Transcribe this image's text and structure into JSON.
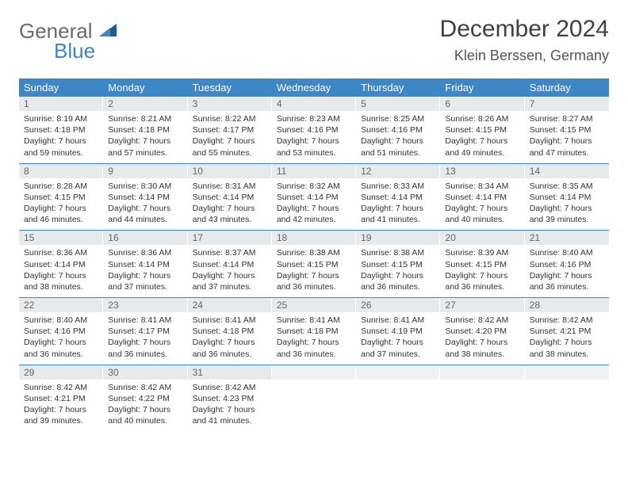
{
  "logo": {
    "general": "General",
    "blue": "Blue"
  },
  "title": "December 2024",
  "location": "Klein Berssen, Germany",
  "header_bg": "#3d87c7",
  "daynum_bg": "#e7e9eb",
  "row_border": "#3d87c7",
  "weekdays": [
    "Sunday",
    "Monday",
    "Tuesday",
    "Wednesday",
    "Thursday",
    "Friday",
    "Saturday"
  ],
  "weeks": [
    [
      {
        "n": "1",
        "sr": "8:19 AM",
        "ss": "4:18 PM",
        "dl": "7 hours and 59 minutes."
      },
      {
        "n": "2",
        "sr": "8:21 AM",
        "ss": "4:18 PM",
        "dl": "7 hours and 57 minutes."
      },
      {
        "n": "3",
        "sr": "8:22 AM",
        "ss": "4:17 PM",
        "dl": "7 hours and 55 minutes."
      },
      {
        "n": "4",
        "sr": "8:23 AM",
        "ss": "4:16 PM",
        "dl": "7 hours and 53 minutes."
      },
      {
        "n": "5",
        "sr": "8:25 AM",
        "ss": "4:16 PM",
        "dl": "7 hours and 51 minutes."
      },
      {
        "n": "6",
        "sr": "8:26 AM",
        "ss": "4:15 PM",
        "dl": "7 hours and 49 minutes."
      },
      {
        "n": "7",
        "sr": "8:27 AM",
        "ss": "4:15 PM",
        "dl": "7 hours and 47 minutes."
      }
    ],
    [
      {
        "n": "8",
        "sr": "8:28 AM",
        "ss": "4:15 PM",
        "dl": "7 hours and 46 minutes."
      },
      {
        "n": "9",
        "sr": "8:30 AM",
        "ss": "4:14 PM",
        "dl": "7 hours and 44 minutes."
      },
      {
        "n": "10",
        "sr": "8:31 AM",
        "ss": "4:14 PM",
        "dl": "7 hours and 43 minutes."
      },
      {
        "n": "11",
        "sr": "8:32 AM",
        "ss": "4:14 PM",
        "dl": "7 hours and 42 minutes."
      },
      {
        "n": "12",
        "sr": "8:33 AM",
        "ss": "4:14 PM",
        "dl": "7 hours and 41 minutes."
      },
      {
        "n": "13",
        "sr": "8:34 AM",
        "ss": "4:14 PM",
        "dl": "7 hours and 40 minutes."
      },
      {
        "n": "14",
        "sr": "8:35 AM",
        "ss": "4:14 PM",
        "dl": "7 hours and 39 minutes."
      }
    ],
    [
      {
        "n": "15",
        "sr": "8:36 AM",
        "ss": "4:14 PM",
        "dl": "7 hours and 38 minutes."
      },
      {
        "n": "16",
        "sr": "8:36 AM",
        "ss": "4:14 PM",
        "dl": "7 hours and 37 minutes."
      },
      {
        "n": "17",
        "sr": "8:37 AM",
        "ss": "4:14 PM",
        "dl": "7 hours and 37 minutes."
      },
      {
        "n": "18",
        "sr": "8:38 AM",
        "ss": "4:15 PM",
        "dl": "7 hours and 36 minutes."
      },
      {
        "n": "19",
        "sr": "8:38 AM",
        "ss": "4:15 PM",
        "dl": "7 hours and 36 minutes."
      },
      {
        "n": "20",
        "sr": "8:39 AM",
        "ss": "4:15 PM",
        "dl": "7 hours and 36 minutes."
      },
      {
        "n": "21",
        "sr": "8:40 AM",
        "ss": "4:16 PM",
        "dl": "7 hours and 36 minutes."
      }
    ],
    [
      {
        "n": "22",
        "sr": "8:40 AM",
        "ss": "4:16 PM",
        "dl": "7 hours and 36 minutes."
      },
      {
        "n": "23",
        "sr": "8:41 AM",
        "ss": "4:17 PM",
        "dl": "7 hours and 36 minutes."
      },
      {
        "n": "24",
        "sr": "8:41 AM",
        "ss": "4:18 PM",
        "dl": "7 hours and 36 minutes."
      },
      {
        "n": "25",
        "sr": "8:41 AM",
        "ss": "4:18 PM",
        "dl": "7 hours and 36 minutes."
      },
      {
        "n": "26",
        "sr": "8:41 AM",
        "ss": "4:19 PM",
        "dl": "7 hours and 37 minutes."
      },
      {
        "n": "27",
        "sr": "8:42 AM",
        "ss": "4:20 PM",
        "dl": "7 hours and 38 minutes."
      },
      {
        "n": "28",
        "sr": "8:42 AM",
        "ss": "4:21 PM",
        "dl": "7 hours and 38 minutes."
      }
    ],
    [
      {
        "n": "29",
        "sr": "8:42 AM",
        "ss": "4:21 PM",
        "dl": "7 hours and 39 minutes."
      },
      {
        "n": "30",
        "sr": "8:42 AM",
        "ss": "4:22 PM",
        "dl": "7 hours and 40 minutes."
      },
      {
        "n": "31",
        "sr": "8:42 AM",
        "ss": "4:23 PM",
        "dl": "7 hours and 41 minutes."
      },
      {
        "empty": true
      },
      {
        "empty": true
      },
      {
        "empty": true
      },
      {
        "empty": true
      }
    ]
  ],
  "labels": {
    "sunrise": "Sunrise:",
    "sunset": "Sunset:",
    "daylight": "Daylight:"
  }
}
